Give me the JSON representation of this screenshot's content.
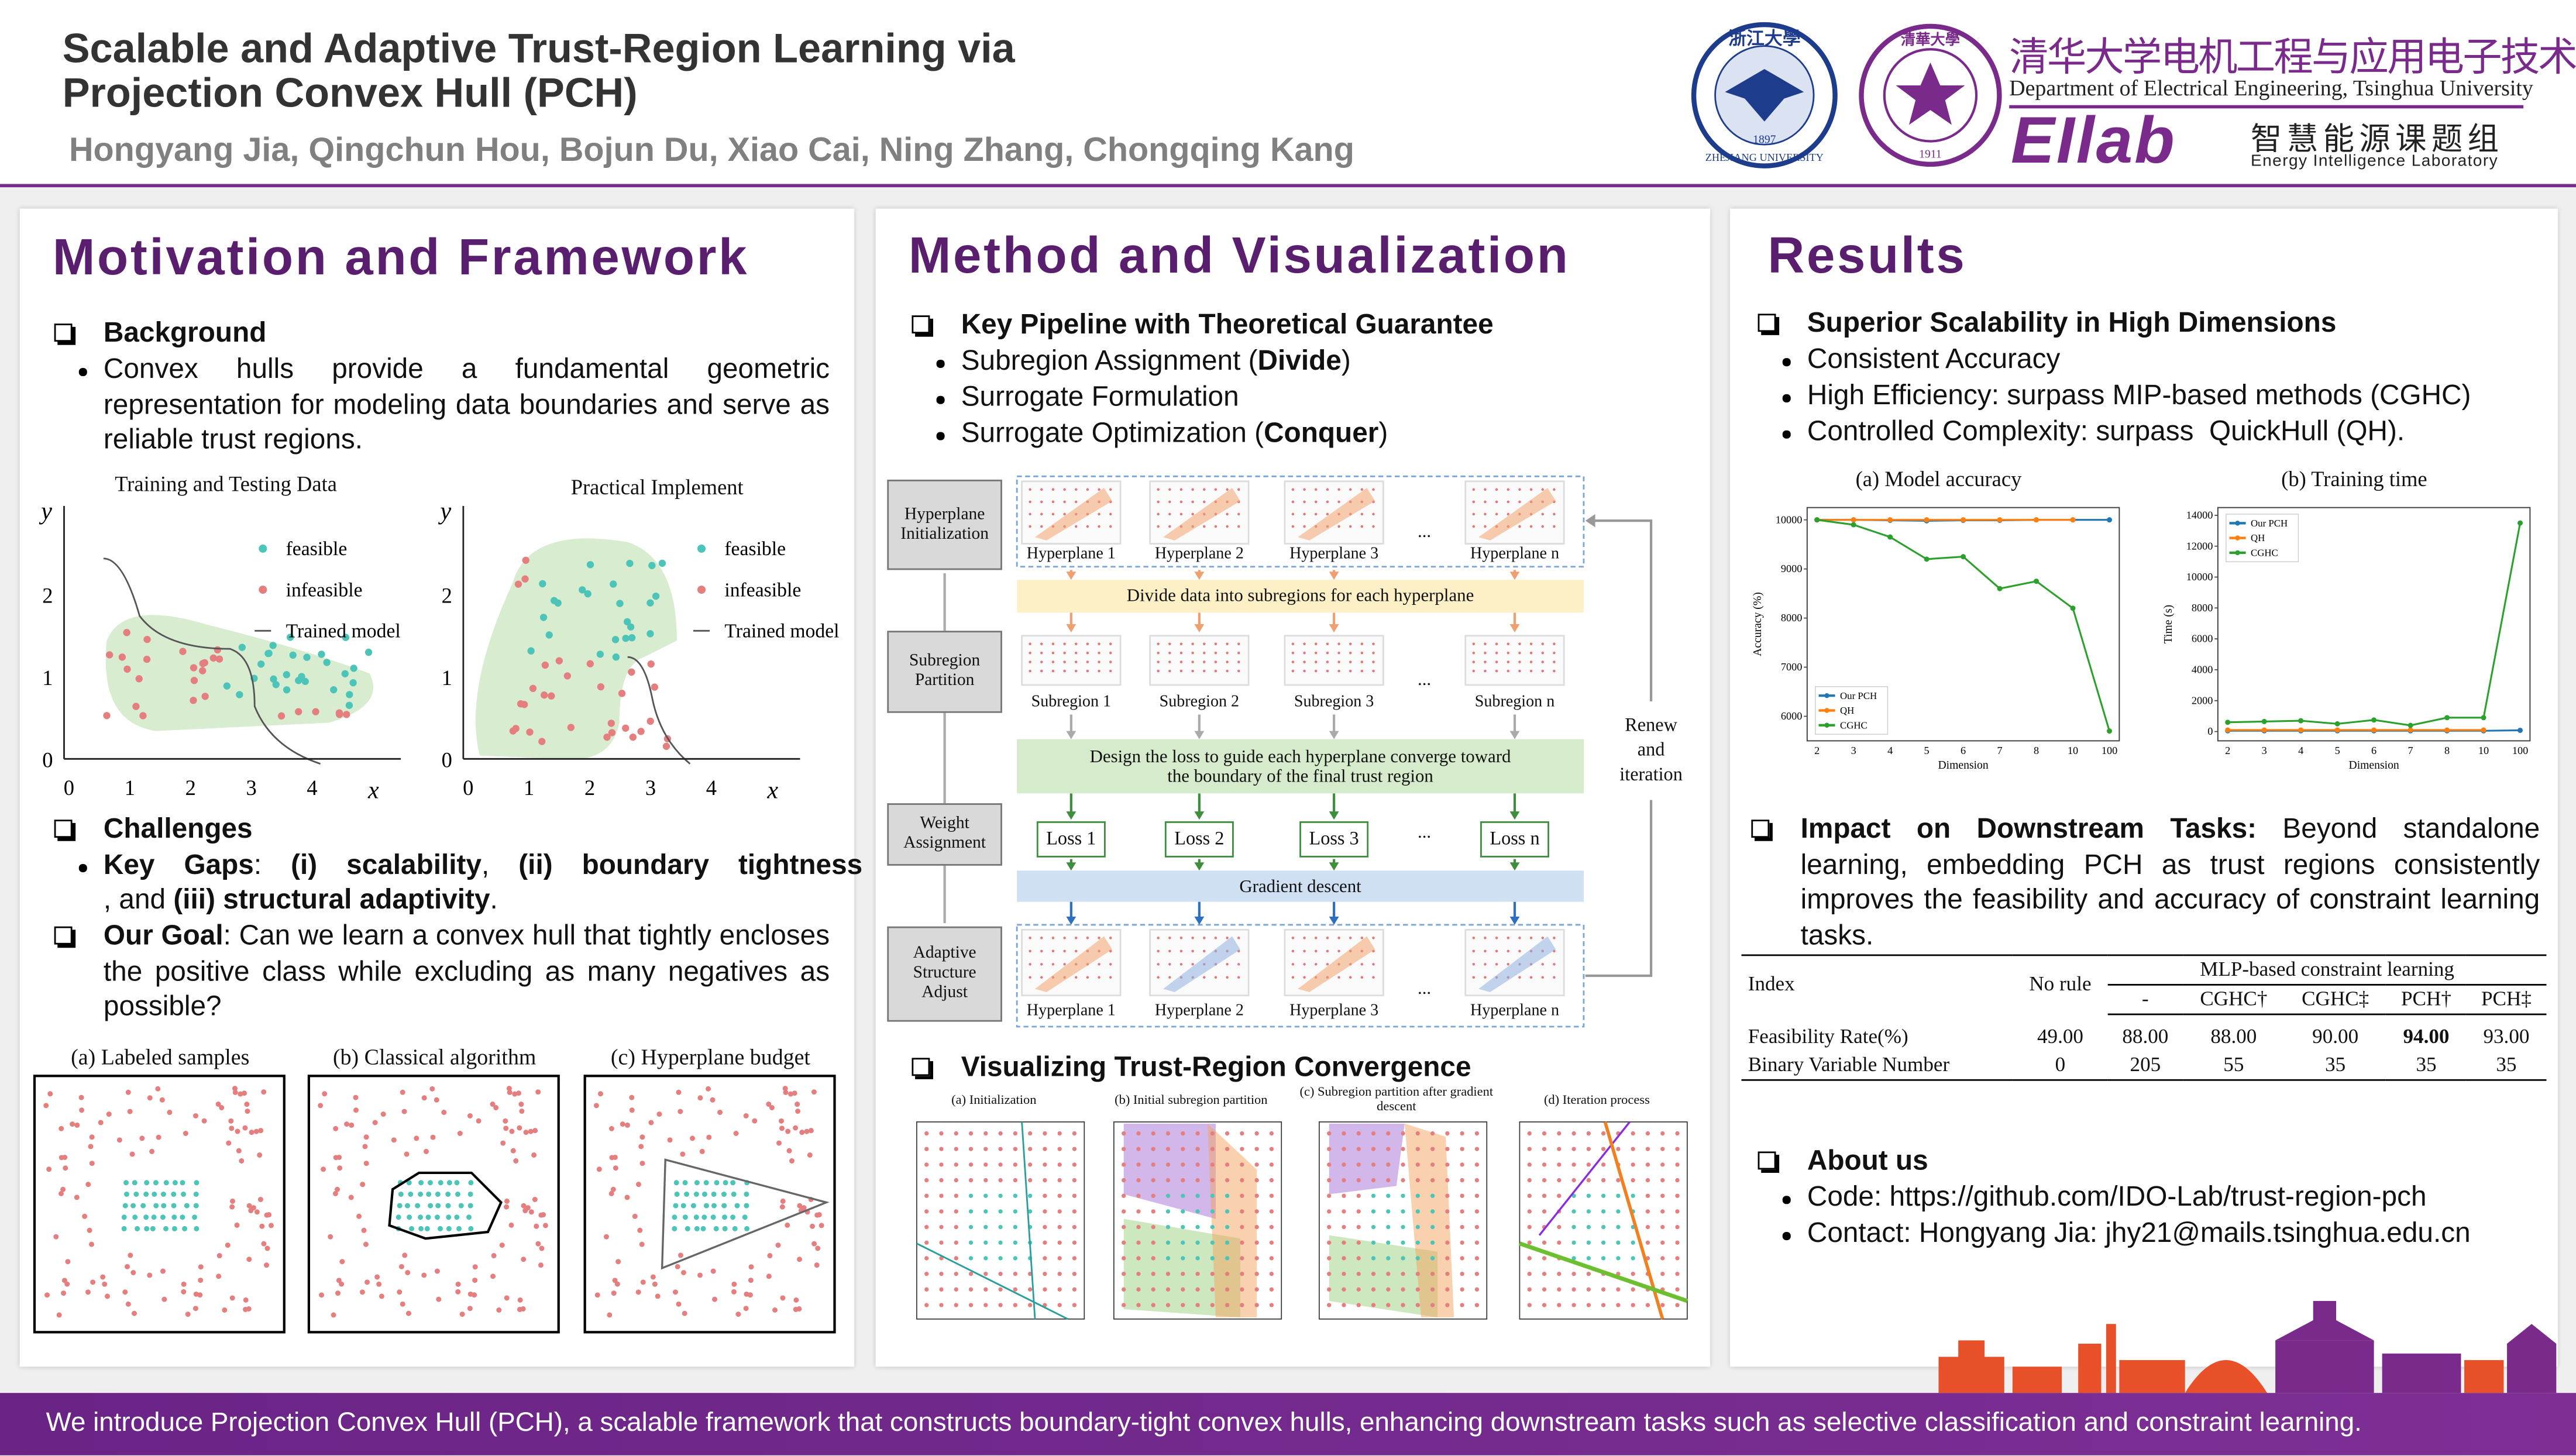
{
  "header": {
    "title_lines": [
      "Scalable and Adaptive Trust-Region Learning via",
      "Projection Convex Hull (PCH)"
    ],
    "authors": "Hongyang Jia, Qingchun Hou, Bojun Du, Xiao Cai, Ning Zhang, Chongqing Kang",
    "zju_logo": {
      "name_cn": "浙江大學",
      "name_en": "ZHEJIANG UNIVERSITY",
      "year": "1897"
    },
    "thu_logo": {
      "name_cn": "清華大學",
      "year": "1911"
    },
    "affiliation_cn": "清华大学电机工程与应用电子技术系",
    "affiliation_en": "Department of Electrical Engineering, Tsinghua University",
    "lab_mark": "EIlab",
    "lab_cn": "智慧能源课题组",
    "lab_en": "Energy Intelligence Laboratory"
  },
  "motivation": {
    "heading": "Motivation and Framework",
    "background": {
      "title": "Background",
      "text": "Convex hulls provide a fundamental geometric representation for modeling data boundaries and serve as reliable trust regions."
    },
    "figures": [
      {
        "title": "Training and Testing Data",
        "y_label": "y",
        "x_label": "x",
        "xticks": [
          0,
          1,
          2,
          3,
          4
        ],
        "yticks": [
          0,
          1,
          2
        ],
        "legend": [
          "feasible",
          "infeasible",
          "Trained model"
        ]
      },
      {
        "title": "Practical Implement",
        "y_label": "y",
        "x_label": "x",
        "xticks": [
          0,
          1,
          2,
          3,
          4
        ],
        "yticks": [
          0,
          1,
          2
        ],
        "legend": [
          "feasible",
          "infeasible",
          "Trained model"
        ]
      }
    ],
    "challenges": {
      "title": "Challenges",
      "gaps": [
        "Key Gaps",
        ": ",
        "(i) scalability",
        ", ",
        "(ii) boundary tightness",
        ", and ",
        "(iii) structural adaptivity",
        "."
      ]
    },
    "goal": {
      "title": "Our Goal",
      "text": ": Can we learn a convex hull that tightly encloses the positive class while excluding as many negatives as possible?"
    },
    "panels": [
      "(a) Labeled samples",
      "(b) Classical algorithm",
      "(c) Hyperplane budget"
    ]
  },
  "method": {
    "heading": "Method and Visualization",
    "pipeline": {
      "title": "Key Pipeline with Theoretical Guarantee",
      "items": [
        [
          "Subregion Assignment (",
          "Divide",
          ")"
        ],
        [
          "Surrogate Formulation"
        ],
        [
          "Surrogate Optimization (",
          "Conquer",
          ")"
        ]
      ]
    },
    "diagram": {
      "stages": [
        "Hyperplane Initialization",
        "Subregion Partition",
        "Weight Assignment",
        "Adaptive Structure Adjust"
      ],
      "hyperplanes": [
        "Hyperplane 1",
        "Hyperplane 2",
        "Hyperplane 3",
        "Hyperplane n"
      ],
      "subregions": [
        "Subregion 1",
        "Subregion 2",
        "Subregion 3",
        "Subregion n"
      ],
      "losses": [
        "Loss 1",
        "Loss 2",
        "Loss 3",
        "Loss n"
      ],
      "ellipsis": "...",
      "band_divide": "Divide data into subregions for each hyperplane",
      "band_loss": "Design the loss to guide each hyperplane converge toward the boundary of the final trust region",
      "band_gradient": "Gradient descent",
      "renew": "Renew and iteration"
    },
    "visualization": {
      "title": "Visualizing Trust-Region Convergence",
      "panels": [
        "(a) Initialization",
        "(b) Initial subregion partition",
        "(c) Subregion partition after gradient descent",
        "(d) Iteration process"
      ]
    }
  },
  "results": {
    "heading": "Results",
    "scalability": {
      "title": "Superior Scalability in High Dimensions",
      "items": [
        "Consistent Accuracy",
        "High Efficiency: surpass MIP-based methods (CGHC)",
        "Controlled Complexity: surpass  QuickHull (QH)."
      ]
    },
    "impact": {
      "title": "Impact on Downstream Tasks:",
      "text": " Beyond standalone learning, embedding PCH as trust regions consistently improves the feasibility and accuracy of constraint learning tasks."
    },
    "table": {
      "header": [
        "Index",
        "No rule",
        "MLP-based constraint learning"
      ],
      "subheader": [
        "-",
        "CGHC†",
        "CGHC‡",
        "PCH†",
        "PCH‡"
      ],
      "rows": [
        [
          "Feasibility Rate(%)",
          "49.00",
          "88.00",
          "88.00",
          "90.00",
          "94.00",
          "93.00"
        ],
        [
          "Binary Variable Number",
          "0",
          "205",
          "55",
          "35",
          "35",
          "35"
        ]
      ]
    },
    "about": {
      "title": "About us",
      "items": [
        "Code: https://github.com/IDO-Lab/trust-region-pch",
        "Contact: Hongyang Jia: jhy21@mails.tsinghua.edu.cn"
      ]
    }
  },
  "chart_data": [
    {
      "type": "line",
      "title": "(a) Model accuracy",
      "x_label": "Dimension",
      "y_label": "Accuracy (%)",
      "categories": [
        "2",
        "3",
        "4",
        "5",
        "6",
        "7",
        "8",
        "10",
        "100"
      ],
      "ylim": [
        5500,
        10250
      ],
      "yticks": [
        6000,
        7000,
        8000,
        9000,
        10000
      ],
      "legend": "lower left",
      "series": [
        {
          "name": "Our PCH",
          "color": "#1f77b4",
          "values": [
            10000,
            10000,
            9990,
            9980,
            9990,
            9990,
            10000,
            10000,
            10000
          ]
        },
        {
          "name": "QH",
          "color": "#ff7f0e",
          "values": [
            10000,
            10000,
            10000,
            10000,
            10000,
            10000,
            10000,
            10000,
            null
          ]
        },
        {
          "name": "CGHC",
          "color": "#2ca02c",
          "values": [
            10000,
            9900,
            9650,
            9200,
            9250,
            8600,
            8750,
            8200,
            5700
          ]
        }
      ]
    },
    {
      "type": "line",
      "title": "(b) Training time",
      "x_label": "Dimension",
      "y_label": "Time (s)",
      "categories": [
        "2",
        "3",
        "4",
        "5",
        "6",
        "7",
        "8",
        "10",
        "100"
      ],
      "ylim": [
        -600,
        14500
      ],
      "yticks": [
        0,
        2000,
        4000,
        6000,
        8000,
        10000,
        12000,
        14000
      ],
      "legend": "upper left",
      "series": [
        {
          "name": "Our PCH",
          "color": "#1f77b4",
          "values": [
            50,
            50,
            50,
            50,
            50,
            50,
            50,
            50,
            80
          ]
        },
        {
          "name": "QH",
          "color": "#ff7f0e",
          "values": [
            100,
            100,
            100,
            100,
            100,
            100,
            100,
            100,
            null
          ]
        },
        {
          "name": "CGHC",
          "color": "#2ca02c",
          "values": [
            600,
            650,
            700,
            500,
            750,
            400,
            900,
            900,
            13500
          ]
        }
      ]
    }
  ],
  "footer": "We introduce Projection Convex Hull (PCH), a scalable framework that constructs boundary-tight convex hulls, enhancing downstream tasks such as selective classification and constraint learning."
}
